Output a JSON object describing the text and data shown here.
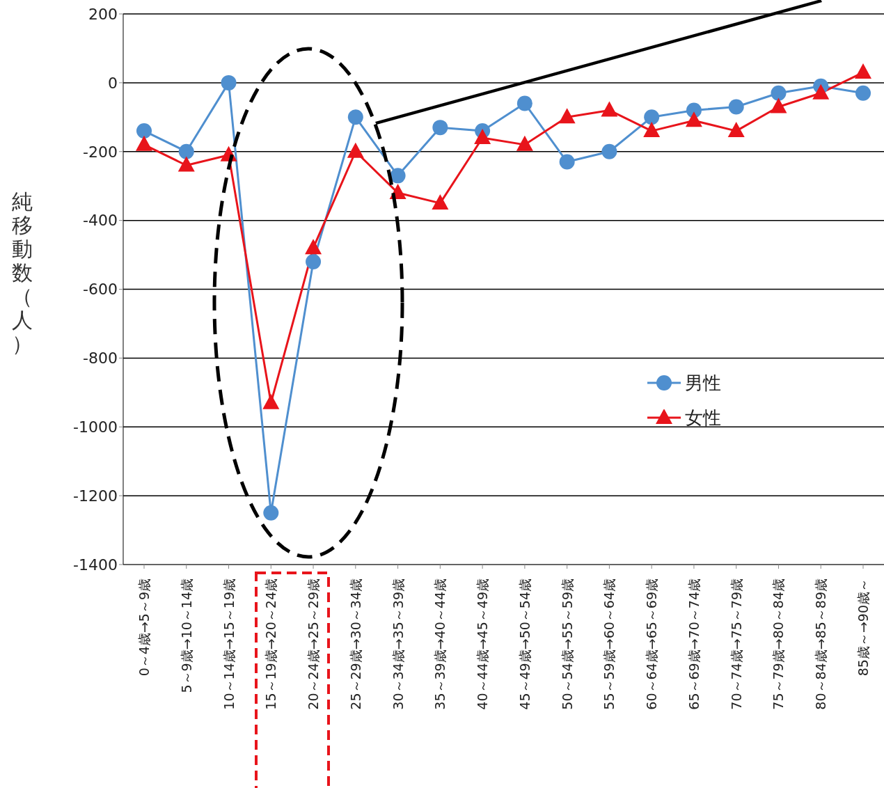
{
  "chart_data": {
    "type": "line",
    "ylabel": "純移動数（人）",
    "categories": [
      "0～4歳→5～9歳",
      "5～9歳→10～14歳",
      "10～14歳→15～19歳",
      "15～19歳→20～24歳",
      "20～24歳→25～29歳",
      "25～29歳→30～34歳",
      "30～34歳→35～39歳",
      "35～39歳→40～44歳",
      "40～44歳→45～49歳",
      "45～49歳→50～54歳",
      "50～54歳→55～59歳",
      "55～59歳→60～64歳",
      "60～64歳→65～69歳",
      "65～69歳→70～74歳",
      "70～74歳→75～79歳",
      "75～79歳→80～84歳",
      "80～84歳→85～89歳",
      "85歳～→90歳～"
    ],
    "series": [
      {
        "name": "男性",
        "color": "#4f8fcf",
        "marker": "circle",
        "values": [
          -140,
          -200,
          0,
          -1250,
          -520,
          -100,
          -270,
          -130,
          -140,
          -60,
          -230,
          -200,
          -100,
          -80,
          -70,
          -30,
          -10,
          -30
        ]
      },
      {
        "name": "女性",
        "color": "#e8141b",
        "marker": "triangle",
        "values": [
          -180,
          -240,
          -210,
          -930,
          -480,
          -200,
          -320,
          -350,
          -160,
          -180,
          -100,
          -80,
          -140,
          -110,
          -140,
          -70,
          -30,
          30
        ]
      }
    ],
    "ylim": [
      -1400,
      200
    ],
    "yticks": [
      -1400,
      -1200,
      -1000,
      -800,
      -600,
      -400,
      -200,
      0,
      200
    ],
    "grid": "y",
    "legend": "right",
    "line_style": "solid"
  }
}
